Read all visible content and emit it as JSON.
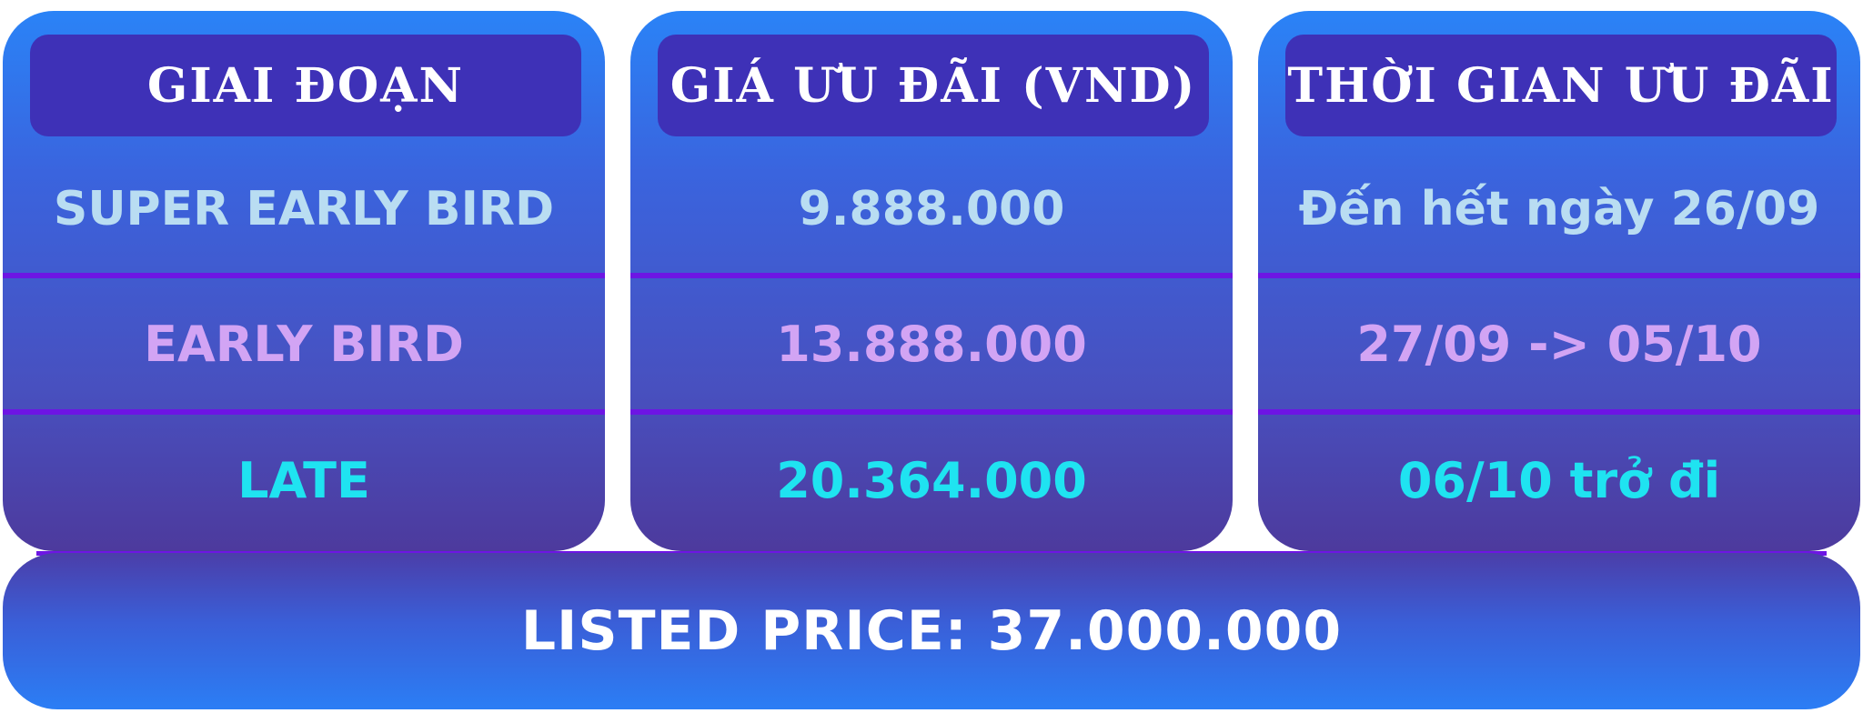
{
  "columns": [
    {
      "header": "GIAI ĐOẠN",
      "rows": [
        "SUPER EARLY BIRD",
        "EARLY BIRD",
        "LATE"
      ]
    },
    {
      "header": "GIÁ ƯU ĐÃI (VND)",
      "rows": [
        "9.888.000",
        "13.888.000",
        "20.364.000"
      ]
    },
    {
      "header": "THỜI GIAN ƯU ĐÃI",
      "rows": [
        "Đến hết ngày 26/09",
        "27/09 -> 05/10",
        "06/10 trở đi"
      ]
    }
  ],
  "footer": {
    "text": "LISTED PRICE: 37.000.000"
  },
  "colors": {
    "header_bg": "#3e31b7",
    "divider": "#6d15e4",
    "row_1_text": "#b9ddf2",
    "row_2_text": "#d2a4f4",
    "row_3_text": "#1fe3f1",
    "header_text": "#ffffff"
  }
}
